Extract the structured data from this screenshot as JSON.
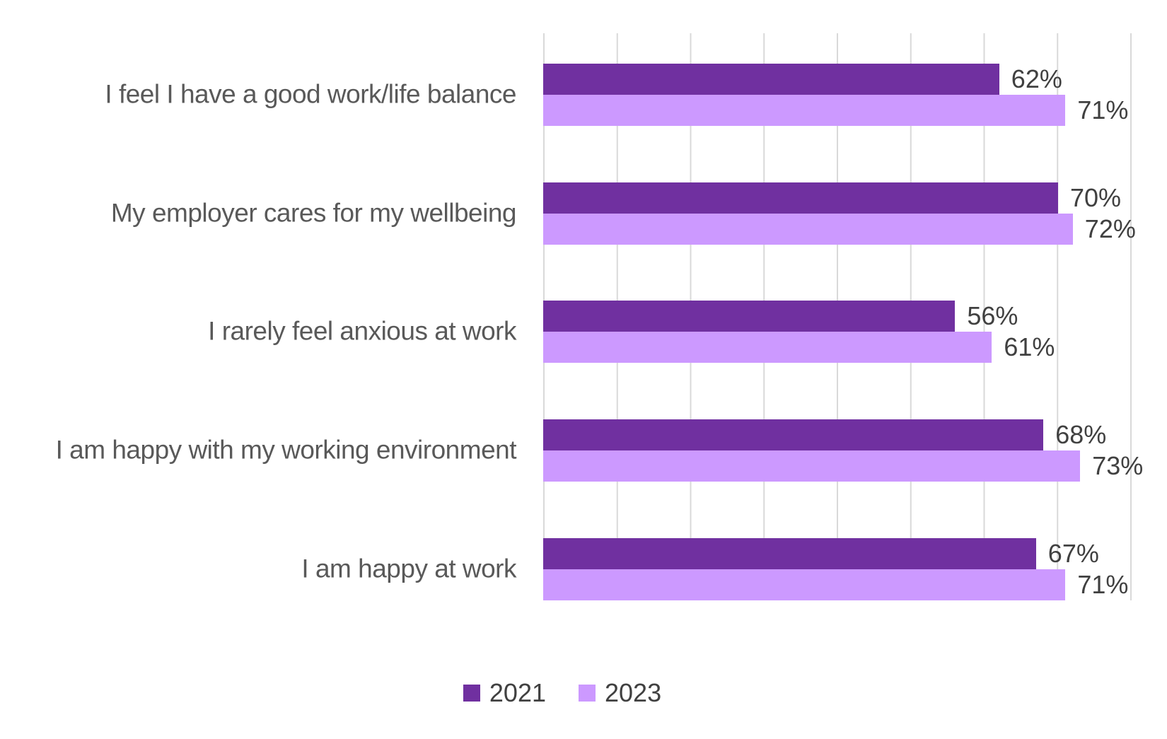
{
  "chart_data": {
    "type": "bar",
    "orientation": "horizontal",
    "title": "",
    "xlabel": "",
    "ylabel": "",
    "categories": [
      "I feel I have a good work/life balance",
      "My employer cares for my wellbeing",
      "I rarely feel anxious at work",
      "I am happy with my working environment",
      "I am happy at work"
    ],
    "series": [
      {
        "name": "2021",
        "color": "#7030A0",
        "values": [
          62,
          70,
          56,
          68,
          67
        ]
      },
      {
        "name": "2023",
        "color": "#CC99FF",
        "values": [
          71,
          72,
          61,
          73,
          71
        ]
      }
    ],
    "value_suffix": "%",
    "xlim": [
      0,
      80
    ],
    "gridline_step": 10,
    "grid": true,
    "legend_position": "bottom"
  },
  "styles": {
    "gridline_color": "#D9D9D9",
    "category_label_color": "#595959",
    "value_label_color": "#404040",
    "legend_text_color": "#404040",
    "background": "#FFFFFF"
  }
}
